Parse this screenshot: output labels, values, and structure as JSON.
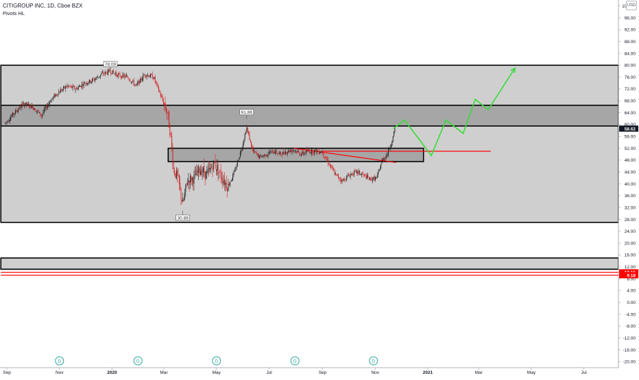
{
  "header": {
    "title": "CITIGROUP INC, 1D, Cboe BZX",
    "indicator": "Pivots HL"
  },
  "currency": "USD",
  "chart_data": {
    "type": "candlestick",
    "symbol": "CITIGROUP INC",
    "interval": "1D",
    "exchange": "Cboe BZX",
    "indicator": "Pivots HL",
    "x_tick_labels": [
      "Sep",
      "Nov",
      "2020",
      "Mar",
      "May",
      "Jul",
      "Sep",
      "Nov",
      "2021",
      "Mar",
      "May",
      "Jul"
    ],
    "y_tick_labels": [
      "-20.00",
      "-16.00",
      "-12.00",
      "-8.00",
      "-4.00",
      "0.00",
      "4.00",
      "8.00",
      "12.00",
      "16.00",
      "20.00",
      "24.00",
      "28.00",
      "32.00",
      "36.00",
      "40.00",
      "44.00",
      "48.00",
      "52.00",
      "56.00",
      "60.00",
      "64.00",
      "68.00",
      "72.00",
      "76.00",
      "80.00",
      "84.00",
      "88.00",
      "92.00",
      "96.00",
      "100.00"
    ],
    "ylim": [
      -22,
      102
    ],
    "price_labels": [
      {
        "text": "58.62",
        "value": 58.62,
        "color": "#131722"
      },
      {
        "text": "10.16",
        "value": 10.16,
        "color": "#ff0000"
      },
      {
        "text": "9.18",
        "value": 9.18,
        "color": "#ff0000"
      }
    ],
    "pivot_labels": [
      {
        "text": "78.09",
        "date": "2019-12-30",
        "value": 78.09,
        "kind": "high"
      },
      {
        "text": "61.88",
        "date": "2020-06-05",
        "value": 61.88,
        "kind": "high"
      },
      {
        "text": "30.88",
        "date": "2020-03-23",
        "value": 30.88,
        "kind": "low"
      }
    ],
    "dividend_markers": [
      {
        "text": "D",
        "date": "2019-11-01"
      },
      {
        "text": "D",
        "date": "2020-01-31"
      },
      {
        "text": "D",
        "date": "2020-05-01"
      },
      {
        "text": "D",
        "date": "2020-07-31"
      },
      {
        "text": "D",
        "date": "2020-10-30"
      }
    ],
    "zones": [
      {
        "from_date": "2019-08-25",
        "to_date": "2021-08-10",
        "low": 27,
        "high": 80,
        "fill": "#cfcfcf"
      },
      {
        "from_date": "2019-08-25",
        "to_date": "2021-08-10",
        "low": 59.5,
        "high": 66.5,
        "fill": "#a6a6a6"
      },
      {
        "from_date": "2020-03-06",
        "to_date": "2020-12-27",
        "low": 47.5,
        "high": 52,
        "fill": "#a6a6a6"
      },
      {
        "from_date": "2019-08-25",
        "to_date": "2021-08-10",
        "low": 11.2,
        "high": 15,
        "fill": "#cfcfcf"
      }
    ],
    "red_lines": [
      {
        "points": [
          [
            "2020-07-30",
            52
          ],
          [
            "2020-11-25",
            47.2
          ]
        ]
      },
      {
        "points": [
          [
            "2020-09-01",
            51
          ],
          [
            "2021-03-15",
            51
          ]
        ]
      },
      {
        "points": [
          [
            "2019-08-25",
            10.16
          ],
          [
            "2021-08-10",
            10.16
          ]
        ]
      },
      {
        "points": [
          [
            "2019-08-25",
            9.18
          ],
          [
            "2021-08-10",
            9.18
          ]
        ]
      }
    ],
    "projection": {
      "color": "#33dd33",
      "points": [
        [
          "2020-11-22",
          58.6
        ],
        [
          "2020-12-05",
          61.5
        ],
        [
          "2020-12-22",
          55
        ],
        [
          "2021-01-05",
          49.5
        ],
        [
          "2021-01-22",
          61.5
        ],
        [
          "2021-02-11",
          57
        ],
        [
          "2021-02-25",
          68.5
        ],
        [
          "2021-03-12",
          65
        ],
        [
          "2021-04-12",
          79
        ]
      ]
    },
    "series": [
      {
        "name": "CITIGROUP INC",
        "type": "candlestick",
        "points": [
          [
            "2019-08-30",
            60.5
          ],
          [
            "2019-09-10",
            64
          ],
          [
            "2019-09-20",
            67
          ],
          [
            "2019-10-01",
            66
          ],
          [
            "2019-10-11",
            63
          ],
          [
            "2019-10-21",
            68
          ],
          [
            "2019-10-31",
            71
          ],
          [
            "2019-11-10",
            73
          ],
          [
            "2019-11-20",
            72
          ],
          [
            "2019-11-30",
            74
          ],
          [
            "2019-12-10",
            75
          ],
          [
            "2019-12-20",
            77
          ],
          [
            "2019-12-30",
            78
          ],
          [
            "2020-01-09",
            76.5
          ],
          [
            "2020-01-19",
            76
          ],
          [
            "2020-01-29",
            73
          ],
          [
            "2020-02-08",
            77
          ],
          [
            "2020-02-18",
            76
          ],
          [
            "2020-02-26",
            70
          ],
          [
            "2020-03-05",
            64
          ],
          [
            "2020-03-09",
            56
          ],
          [
            "2020-03-12",
            45
          ],
          [
            "2020-03-17",
            42
          ],
          [
            "2020-03-23",
            33
          ],
          [
            "2020-03-28",
            41
          ],
          [
            "2020-04-05",
            42
          ],
          [
            "2020-04-12",
            45
          ],
          [
            "2020-04-20",
            43
          ],
          [
            "2020-04-28",
            47
          ],
          [
            "2020-05-06",
            43
          ],
          [
            "2020-05-14",
            39
          ],
          [
            "2020-05-22",
            44
          ],
          [
            "2020-05-30",
            52
          ],
          [
            "2020-06-05",
            59
          ],
          [
            "2020-06-12",
            51
          ],
          [
            "2020-06-20",
            49
          ],
          [
            "2020-06-28",
            50
          ],
          [
            "2020-07-06",
            51
          ],
          [
            "2020-07-14",
            50
          ],
          [
            "2020-07-22",
            51
          ],
          [
            "2020-07-30",
            51.5
          ],
          [
            "2020-08-07",
            50
          ],
          [
            "2020-08-15",
            51
          ],
          [
            "2020-08-23",
            51
          ],
          [
            "2020-08-31",
            51
          ],
          [
            "2020-09-08",
            47
          ],
          [
            "2020-09-16",
            43
          ],
          [
            "2020-09-24",
            41
          ],
          [
            "2020-10-02",
            43
          ],
          [
            "2020-10-10",
            44
          ],
          [
            "2020-10-18",
            43
          ],
          [
            "2020-10-26",
            41.5
          ],
          [
            "2020-11-03",
            42
          ],
          [
            "2020-11-09",
            48
          ],
          [
            "2020-11-15",
            50
          ],
          [
            "2020-11-21",
            55
          ],
          [
            "2020-11-24",
            58.62
          ]
        ]
      }
    ]
  }
}
